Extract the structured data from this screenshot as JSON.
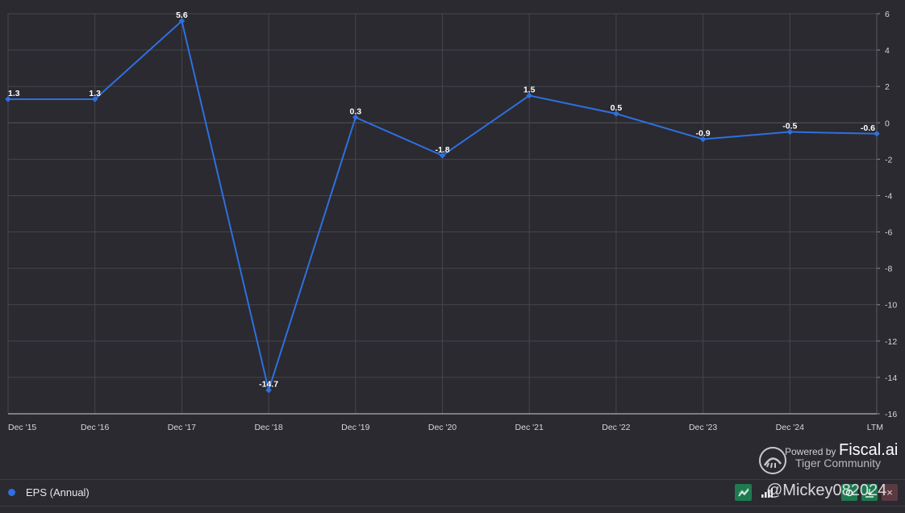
{
  "chart_data": {
    "type": "line",
    "categories": [
      "Dec '15",
      "Dec '16",
      "Dec '17",
      "Dec '18",
      "Dec '19",
      "Dec '20",
      "Dec '21",
      "Dec '22",
      "Dec '23",
      "Dec '24",
      "LTM"
    ],
    "series": [
      {
        "name": "EPS (Annual)",
        "values": [
          1.3,
          1.3,
          5.6,
          -14.7,
          0.3,
          -1.8,
          1.5,
          0.5,
          -0.9,
          -0.5,
          -0.6
        ],
        "labels": [
          "1.3",
          "1.3",
          "5.6",
          "-14.7",
          "0.3",
          "-1.8",
          "1.5",
          "0.5",
          "-0.9",
          "-0.5",
          "-0.6"
        ],
        "color": "#2f6fe0"
      }
    ],
    "ylim": [
      -16,
      6
    ],
    "yticks": [
      6,
      4,
      2,
      0,
      -2,
      -4,
      -6,
      -8,
      -10,
      -12,
      -14,
      -16
    ],
    "y_axis_position": "right",
    "grid": true,
    "legend_position": "bottom-left"
  },
  "legend": {
    "label": "EPS (Annual)",
    "color": "#2f6fe0"
  },
  "branding": {
    "powered_by": "Powered by",
    "fiscal": "Fiscal.ai",
    "community": "Tiger Community"
  },
  "watermark": "@Mickey082024",
  "toolbar": [
    "line-chart-icon",
    "bar-chart-icon",
    "settings-icon",
    "download-icon",
    "close-icon"
  ],
  "colors": {
    "background": "#2a2a30",
    "grid": "#45454c",
    "line": "#2f6fe0"
  }
}
